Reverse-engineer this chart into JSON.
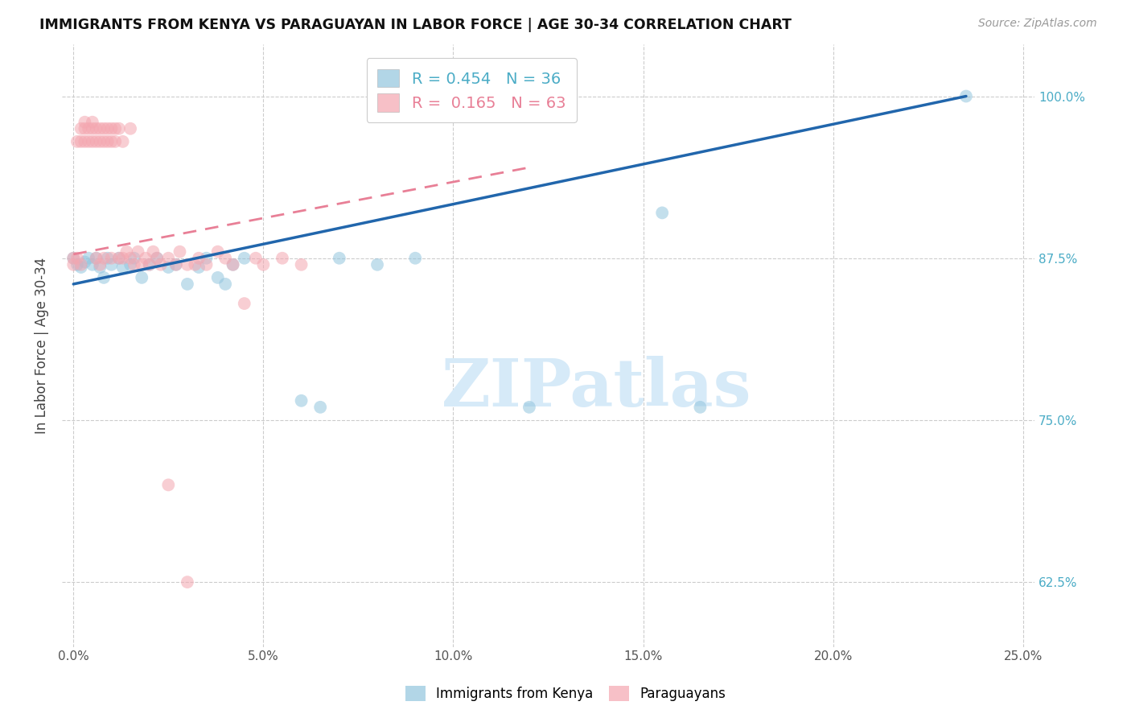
{
  "title": "IMMIGRANTS FROM KENYA VS PARAGUAYAN IN LABOR FORCE | AGE 30-34 CORRELATION CHART",
  "source": "Source: ZipAtlas.com",
  "ylabel": "In Labor Force | Age 30-34",
  "xlim": [
    -0.003,
    0.253
  ],
  "ylim": [
    0.575,
    1.04
  ],
  "xtick_vals": [
    0.0,
    0.05,
    0.1,
    0.15,
    0.2,
    0.25
  ],
  "xtick_labels": [
    "0.0%",
    "5.0%",
    "10.0%",
    "15.0%",
    "20.0%",
    "25.0%"
  ],
  "ytick_vals": [
    0.625,
    0.75,
    0.875,
    1.0
  ],
  "ytick_labels": [
    "62.5%",
    "75.0%",
    "87.5%",
    "100.0%"
  ],
  "kenya_color": "#92c5de",
  "paraguay_color": "#f4a6b0",
  "kenya_trend_color": "#2166ac",
  "paraguay_trend_color": "#e87f96",
  "kenya_R": 0.454,
  "kenya_N": 36,
  "paraguay_R": 0.165,
  "paraguay_N": 63,
  "kenya_x": [
    0.0,
    0.001,
    0.002,
    0.003,
    0.004,
    0.005,
    0.006,
    0.007,
    0.008,
    0.009,
    0.01,
    0.012,
    0.013,
    0.015,
    0.016,
    0.018,
    0.02,
    0.022,
    0.025,
    0.027,
    0.03,
    0.033,
    0.035,
    0.038,
    0.04,
    0.042,
    0.045,
    0.06,
    0.065,
    0.07,
    0.08,
    0.09,
    0.12,
    0.155,
    0.165,
    0.235
  ],
  "kenya_y": [
    0.875,
    0.87,
    0.868,
    0.872,
    0.875,
    0.87,
    0.875,
    0.868,
    0.86,
    0.875,
    0.87,
    0.875,
    0.868,
    0.87,
    0.875,
    0.86,
    0.87,
    0.875,
    0.868,
    0.87,
    0.855,
    0.868,
    0.875,
    0.86,
    0.855,
    0.87,
    0.875,
    0.765,
    0.76,
    0.875,
    0.87,
    0.875,
    0.76,
    0.91,
    0.76,
    1.0
  ],
  "paraguay_x": [
    0.0,
    0.0,
    0.001,
    0.001,
    0.002,
    0.002,
    0.002,
    0.003,
    0.003,
    0.003,
    0.004,
    0.004,
    0.005,
    0.005,
    0.005,
    0.006,
    0.006,
    0.006,
    0.007,
    0.007,
    0.007,
    0.008,
    0.008,
    0.008,
    0.009,
    0.009,
    0.01,
    0.01,
    0.01,
    0.011,
    0.011,
    0.012,
    0.012,
    0.013,
    0.013,
    0.014,
    0.015,
    0.015,
    0.016,
    0.017,
    0.018,
    0.019,
    0.02,
    0.021,
    0.022,
    0.023,
    0.025,
    0.027,
    0.028,
    0.03,
    0.032,
    0.033,
    0.035,
    0.038,
    0.04,
    0.042,
    0.045,
    0.048,
    0.05,
    0.055,
    0.06,
    0.025,
    0.03
  ],
  "paraguay_y": [
    0.875,
    0.87,
    0.965,
    0.875,
    0.975,
    0.965,
    0.87,
    0.98,
    0.975,
    0.965,
    0.975,
    0.965,
    0.98,
    0.975,
    0.965,
    0.975,
    0.965,
    0.875,
    0.975,
    0.965,
    0.87,
    0.975,
    0.965,
    0.875,
    0.975,
    0.965,
    0.975,
    0.965,
    0.875,
    0.975,
    0.965,
    0.975,
    0.875,
    0.965,
    0.875,
    0.88,
    0.975,
    0.875,
    0.87,
    0.88,
    0.87,
    0.875,
    0.87,
    0.88,
    0.875,
    0.87,
    0.875,
    0.87,
    0.88,
    0.87,
    0.87,
    0.875,
    0.87,
    0.88,
    0.875,
    0.87,
    0.84,
    0.875,
    0.87,
    0.875,
    0.87,
    0.7,
    0.625
  ],
  "kenya_trend_x1": 0.0,
  "kenya_trend_x2": 0.235,
  "kenya_trend_y1": 0.855,
  "kenya_trend_y2": 1.0,
  "paraguay_trend_x1": 0.0,
  "paraguay_trend_x2": 0.12,
  "paraguay_trend_y1": 0.878,
  "paraguay_trend_y2": 0.945,
  "watermark": "ZIPatlas",
  "watermark_color": "#d6eaf8",
  "background_color": "#ffffff",
  "right_tick_color": "#4bacc6",
  "legend_label_kenya": "R = 0.454   N = 36",
  "legend_label_paraguay": "R =  0.165   N = 63",
  "bottom_legend_kenya": "Immigrants from Kenya",
  "bottom_legend_paraguay": "Paraguayans"
}
